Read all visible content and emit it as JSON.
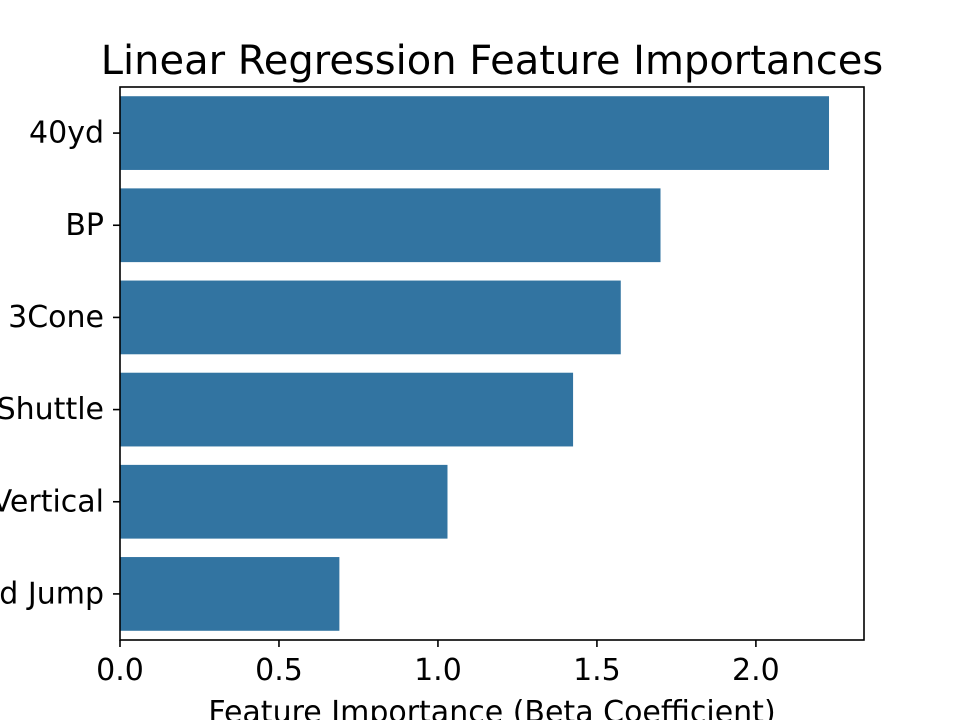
{
  "chart_data": {
    "type": "bar",
    "orientation": "horizontal",
    "title": "Linear Regression Feature Importances",
    "xlabel": "Feature Importance (Beta Coefficient)",
    "ylabel": "",
    "categories": [
      "40yd",
      "BP",
      "3Cone",
      "Shuttle",
      "Vertical",
      "Broad Jump"
    ],
    "values": [
      2.23,
      1.7,
      1.575,
      1.425,
      1.03,
      0.69
    ],
    "xlim": [
      0,
      2.34
    ],
    "xticks": [
      0.0,
      0.5,
      1.0,
      1.5,
      2.0
    ],
    "xtick_labels": [
      "0.0",
      "0.5",
      "1.0",
      "1.5",
      "2.0"
    ],
    "grid": false,
    "colors": {
      "bar": "#3274a1",
      "axis": "#000000",
      "background": "#ffffff"
    }
  }
}
